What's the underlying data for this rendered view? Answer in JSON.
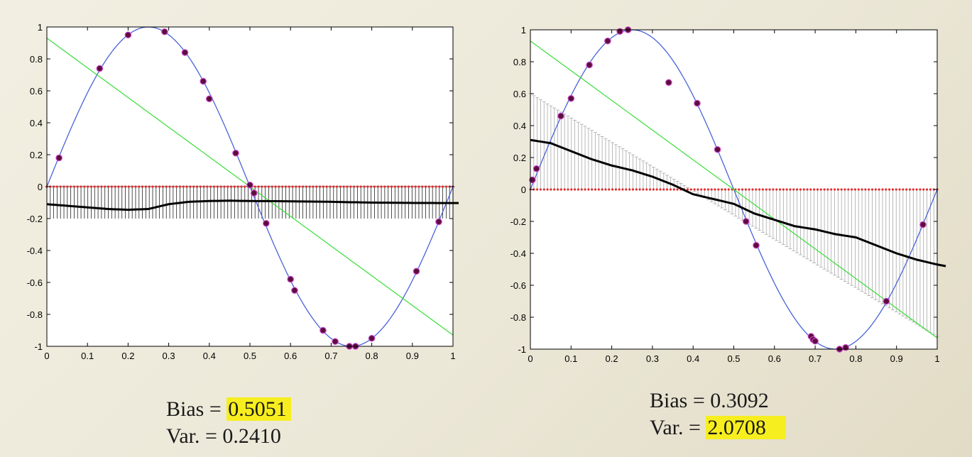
{
  "chart_data": [
    {
      "type": "line",
      "xlim": [
        0,
        1
      ],
      "ylim": [
        -1,
        1
      ],
      "xticks": [
        "0",
        "0.1",
        "0.2",
        "0.3",
        "0.4",
        "0.5",
        "0.6",
        "0.7",
        "0.8",
        "0.9",
        "1"
      ],
      "yticks": [
        "1",
        "0.8",
        "0.6",
        "0.4",
        "0.2",
        "0",
        "-0.2",
        "-0.4",
        "-0.6",
        "-0.8",
        "-1"
      ],
      "true_function": "sin(2*pi*x)",
      "linear_fit": {
        "x": [
          0,
          1
        ],
        "y": [
          0.93,
          -0.93
        ]
      },
      "sample_points": {
        "x": [
          0.03,
          0.13,
          0.2,
          0.29,
          0.34,
          0.385,
          0.4,
          0.465,
          0.5,
          0.51,
          0.54,
          0.6,
          0.61,
          0.68,
          0.71,
          0.745,
          0.76,
          0.8,
          0.91,
          0.965
        ],
        "y": [
          0.18,
          0.74,
          0.95,
          0.97,
          0.84,
          0.66,
          0.55,
          0.21,
          0.01,
          -0.04,
          -0.23,
          -0.58,
          -0.65,
          -0.9,
          -0.97,
          -1.0,
          -1.0,
          -0.95,
          -0.53,
          -0.22
        ]
      },
      "mean_prediction": {
        "x": [
          0,
          0.05,
          0.1,
          0.15,
          0.2,
          0.25,
          0.3,
          0.35,
          0.4,
          0.45,
          0.5,
          0.6,
          0.7,
          0.8,
          0.9,
          1.0
        ],
        "y": [
          -0.11,
          -0.12,
          -0.13,
          -0.14,
          -0.145,
          -0.14,
          -0.11,
          -0.095,
          -0.09,
          -0.088,
          -0.09,
          -0.092,
          -0.095,
          -0.1,
          -0.102,
          -0.103
        ]
      },
      "error_bars": {
        "n": 120,
        "top": 0,
        "bottom": -0.2
      },
      "stats": {
        "bias_label": "Bias = ",
        "bias_value": "0.5051",
        "var_label": "Var.  = ",
        "var_value": "0.2410",
        "highlight": "bias"
      }
    },
    {
      "type": "line",
      "xlim": [
        0,
        1
      ],
      "ylim": [
        -1,
        1
      ],
      "xticks": [
        "0",
        "0.1",
        "0.2",
        "0.3",
        "0.4",
        "0.5",
        "0.6",
        "0.7",
        "0.8",
        "0.9",
        "1"
      ],
      "yticks": [
        "1",
        "0.8",
        "0.6",
        "0.4",
        "0.2",
        "0",
        "-0.2",
        "-0.4",
        "-0.6",
        "-0.8",
        "-1"
      ],
      "true_function": "sin(2*pi*x)",
      "linear_fit": {
        "x": [
          0,
          1
        ],
        "y": [
          0.93,
          -0.93
        ]
      },
      "sample_points": {
        "x": [
          0.005,
          0.015,
          0.075,
          0.1,
          0.145,
          0.19,
          0.22,
          0.24,
          0.34,
          0.41,
          0.46,
          0.53,
          0.555,
          0.69,
          0.695,
          0.7,
          0.76,
          0.775,
          0.875,
          0.965
        ],
        "y": [
          0.06,
          0.13,
          0.46,
          0.57,
          0.78,
          0.93,
          0.99,
          1.0,
          0.67,
          0.54,
          0.25,
          -0.2,
          -0.35,
          -0.92,
          -0.94,
          -0.95,
          -1.0,
          -0.99,
          -0.7,
          -0.22
        ]
      },
      "mean_prediction": {
        "x": [
          0,
          0.05,
          0.1,
          0.15,
          0.2,
          0.25,
          0.3,
          0.35,
          0.4,
          0.45,
          0.5,
          0.55,
          0.6,
          0.65,
          0.7,
          0.75,
          0.8,
          0.85,
          0.9,
          0.95,
          1.0
        ],
        "y": [
          0.31,
          0.29,
          0.24,
          0.19,
          0.15,
          0.12,
          0.08,
          0.03,
          -0.03,
          -0.06,
          -0.09,
          -0.15,
          -0.19,
          -0.23,
          -0.25,
          -0.28,
          -0.3,
          -0.35,
          -0.4,
          -0.44,
          -0.47
        ]
      },
      "error_bars": {
        "n": 120,
        "top_start": 0.6,
        "top_end": -0.92,
        "bottom": 0
      },
      "stats": {
        "bias_label": "Bias = ",
        "bias_value": "0.3092",
        "var_label": "Var.  = ",
        "var_value": "2.0708",
        "highlight": "var"
      }
    }
  ],
  "colors": {
    "true_function": "#4a64d8",
    "linear_fit": "#38dd38",
    "sample_fill": "#5a0f3a",
    "sample_edge": "#cc44cc",
    "mean_prediction": "#000000",
    "error_bar": "#a8a8a8",
    "zero_marker": "#e03030"
  }
}
